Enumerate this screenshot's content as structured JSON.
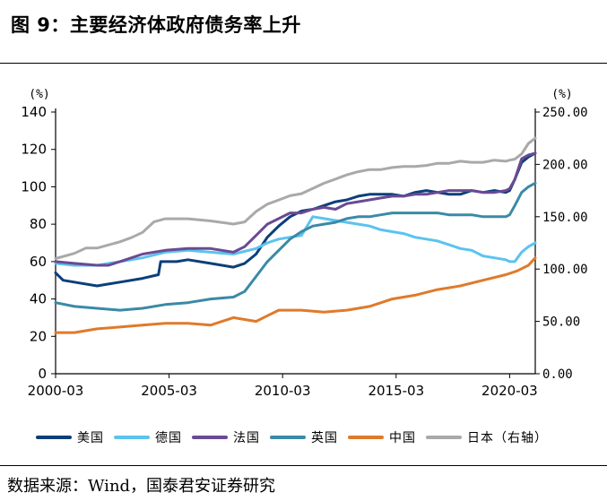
{
  "title": "图 9：主要经济体政府债务率上升",
  "source": "数据来源：Wind，国泰君安证券研究",
  "chart_data": {
    "type": "line",
    "y_left_unit": "(%)",
    "y_right_unit": "(%)",
    "x_range": [
      2000.17,
      2021.3
    ],
    "x_tick_values": [
      2000.17,
      2005.17,
      2010.17,
      2015.17,
      2020.17
    ],
    "x_tick_labels": [
      "2000-03",
      "2005-03",
      "2010-03",
      "2015-03",
      "2020-03"
    ],
    "y_left_range": [
      0,
      140
    ],
    "y_left_ticks": [
      0,
      20,
      40,
      60,
      80,
      100,
      120,
      140
    ],
    "y_left_tick_labels": [
      "0",
      "20",
      "40",
      "60",
      "80",
      "100",
      "120",
      "140"
    ],
    "y_right_range": [
      0,
      250
    ],
    "y_right_ticks": [
      0,
      50,
      100,
      150,
      200,
      250
    ],
    "y_right_tick_labels": [
      "0.00",
      "50.00",
      "100.00",
      "150.00",
      "200.00",
      "250.00"
    ],
    "grid": false,
    "legend_position": "bottom",
    "series": [
      {
        "name": "美国",
        "color": "#0c3f7a",
        "axis": "left",
        "x": [
          2000.17,
          2000.5,
          2001,
          2002,
          2002.5,
          2003,
          2004,
          2004.7,
          2004.8,
          2005.5,
          2006,
          2007,
          2007.5,
          2008,
          2008.5,
          2009,
          2009.5,
          2010,
          2010.5,
          2011,
          2011.5,
          2012,
          2012.5,
          2013,
          2013.5,
          2014,
          2014.5,
          2015,
          2015.5,
          2016,
          2016.5,
          2017,
          2017.5,
          2018,
          2018.5,
          2019,
          2019.5,
          2020,
          2020.17,
          2020.4,
          2020.7,
          2021,
          2021.3
        ],
        "y": [
          54,
          50,
          49,
          47,
          48,
          49,
          51,
          53,
          60,
          60,
          61,
          59,
          58,
          57,
          59,
          64,
          73,
          79,
          84,
          87,
          88,
          90,
          92,
          93,
          95,
          96,
          96,
          96,
          95,
          97,
          98,
          97,
          96,
          96,
          98,
          97,
          98,
          97,
          98,
          104,
          113,
          116,
          118
        ]
      },
      {
        "name": "德国",
        "color": "#5bc3ee",
        "axis": "left",
        "x": [
          2000.17,
          2001,
          2002,
          2003,
          2004,
          2005,
          2006,
          2007,
          2008,
          2009,
          2009.5,
          2010,
          2010.5,
          2011,
          2011.5,
          2012,
          2012.5,
          2013,
          2013.5,
          2014,
          2014.5,
          2015,
          2015.5,
          2016,
          2016.5,
          2017,
          2017.5,
          2018,
          2018.5,
          2019,
          2019.5,
          2020,
          2020.17,
          2020.4,
          2020.7,
          2021,
          2021.3
        ],
        "y": [
          59,
          58,
          58,
          60,
          62,
          65,
          66,
          65,
          64,
          67,
          70,
          72,
          73,
          74,
          84,
          83,
          82,
          81,
          80,
          79,
          77,
          76,
          75,
          73,
          72,
          71,
          69,
          67,
          66,
          63,
          62,
          61,
          60,
          60,
          65,
          68,
          70
        ]
      },
      {
        "name": "法国",
        "color": "#6a4a93",
        "axis": "left",
        "x": [
          2000.17,
          2001,
          2002,
          2002.5,
          2003,
          2004,
          2005,
          2006,
          2007,
          2008,
          2008.5,
          2009,
          2009.5,
          2010,
          2010.5,
          2011,
          2011.5,
          2012,
          2012.5,
          2013,
          2013.5,
          2014,
          2014.5,
          2015,
          2015.5,
          2016,
          2016.5,
          2017,
          2017.5,
          2018,
          2018.5,
          2019,
          2019.5,
          2020,
          2020.17,
          2020.4,
          2020.7,
          2021,
          2021.3
        ],
        "y": [
          60,
          59,
          58,
          58,
          60,
          64,
          66,
          67,
          67,
          65,
          68,
          74,
          80,
          83,
          86,
          86,
          88,
          89,
          88,
          91,
          92,
          93,
          94,
          95,
          95,
          96,
          96,
          97,
          98,
          98,
          98,
          97,
          97,
          98,
          99,
          104,
          115,
          117,
          118
        ]
      },
      {
        "name": "英国",
        "color": "#3a8aa6",
        "axis": "left",
        "x": [
          2000.17,
          2001,
          2002,
          2003,
          2004,
          2005,
          2006,
          2007,
          2008,
          2008.5,
          2009,
          2009.5,
          2010,
          2010.5,
          2011,
          2011.5,
          2012,
          2012.5,
          2013,
          2013.5,
          2014,
          2014.5,
          2015,
          2015.5,
          2016,
          2016.5,
          2017,
          2017.5,
          2018,
          2018.5,
          2019,
          2019.5,
          2020,
          2020.17,
          2020.4,
          2020.7,
          2021,
          2021.3
        ],
        "y": [
          38,
          36,
          35,
          34,
          35,
          37,
          38,
          40,
          41,
          44,
          52,
          60,
          66,
          72,
          76,
          79,
          80,
          81,
          83,
          84,
          84,
          85,
          86,
          86,
          86,
          86,
          86,
          85,
          85,
          85,
          84,
          84,
          84,
          85,
          90,
          97,
          100,
          102
        ]
      },
      {
        "name": "中国",
        "color": "#e07a2a",
        "axis": "left",
        "x": [
          2000.17,
          2001,
          2002,
          2003,
          2004,
          2005,
          2006,
          2007,
          2007.5,
          2008,
          2008.5,
          2009,
          2009.5,
          2010,
          2011,
          2012,
          2013,
          2014,
          2015,
          2016,
          2017,
          2018,
          2019,
          2020,
          2020.5,
          2021,
          2021.3
        ],
        "y": [
          22,
          22,
          24,
          25,
          26,
          27,
          27,
          26,
          28,
          30,
          29,
          28,
          31,
          34,
          34,
          33,
          34,
          36,
          40,
          42,
          45,
          47,
          50,
          53,
          55,
          58,
          62
        ]
      },
      {
        "name": "日本（右轴）",
        "color": "#a9a9a9",
        "axis": "right",
        "x": [
          2000.17,
          2001,
          2001.5,
          2002,
          2003,
          2003.5,
          2004,
          2004.5,
          2005,
          2006,
          2007,
          2008,
          2008.5,
          2009,
          2009.5,
          2010,
          2010.5,
          2011,
          2011.5,
          2012,
          2012.5,
          2013,
          2013.5,
          2014,
          2014.5,
          2015,
          2015.5,
          2016,
          2016.5,
          2017,
          2017.5,
          2018,
          2018.5,
          2019,
          2019.5,
          2020,
          2020.17,
          2020.4,
          2020.7,
          2021,
          2021.3
        ],
        "y": [
          110,
          115,
          120,
          120,
          126,
          130,
          135,
          145,
          148,
          148,
          146,
          143,
          145,
          155,
          162,
          166,
          170,
          172,
          177,
          182,
          186,
          190,
          193,
          195,
          195,
          197,
          198,
          198,
          199,
          201,
          201,
          203,
          202,
          202,
          204,
          203,
          204,
          205,
          210,
          220,
          225
        ]
      }
    ]
  }
}
